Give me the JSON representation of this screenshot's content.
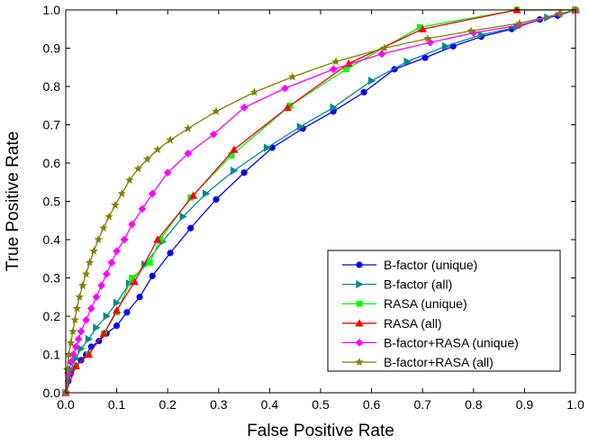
{
  "chart_data": {
    "type": "line",
    "xlabel": "False Positive Rate",
    "ylabel": "True Positive Rate",
    "xlim": [
      0,
      1
    ],
    "ylim": [
      0,
      1
    ],
    "xticks": [
      "0.0",
      "0.1",
      "0.2",
      "0.3",
      "0.4",
      "0.5",
      "0.6",
      "0.7",
      "0.8",
      "0.9",
      "1.0"
    ],
    "yticks": [
      "0.0",
      "0.1",
      "0.2",
      "0.3",
      "0.4",
      "0.5",
      "0.6",
      "0.7",
      "0.8",
      "0.9",
      "1.0"
    ],
    "grid": false,
    "legend_position": "bottom-right",
    "series": [
      {
        "name": "B-factor (unique)",
        "color": "#0000ff",
        "marker": "circle",
        "x": [
          0,
          0.005,
          0.01,
          0.02,
          0.03,
          0.04,
          0.05,
          0.065,
          0.08,
          0.1,
          0.12,
          0.145,
          0.17,
          0.205,
          0.245,
          0.295,
          0.35,
          0.405,
          0.465,
          0.525,
          0.585,
          0.645,
          0.705,
          0.76,
          0.815,
          0.875,
          0.93,
          0.965,
          1.0
        ],
        "y": [
          0,
          0.03,
          0.05,
          0.07,
          0.085,
          0.1,
          0.12,
          0.135,
          0.155,
          0.175,
          0.21,
          0.25,
          0.305,
          0.365,
          0.43,
          0.505,
          0.575,
          0.64,
          0.69,
          0.735,
          0.785,
          0.845,
          0.875,
          0.905,
          0.93,
          0.95,
          0.975,
          0.985,
          1.0
        ]
      },
      {
        "name": "B-factor (all)",
        "color": "#008b8b",
        "marker": "triangle-right",
        "x": [
          0,
          0.01,
          0.02,
          0.03,
          0.045,
          0.06,
          0.08,
          0.1,
          0.125,
          0.155,
          0.19,
          0.23,
          0.275,
          0.33,
          0.395,
          0.46,
          0.525,
          0.6,
          0.67,
          0.745,
          0.815,
          0.885,
          0.945,
          1.0
        ],
        "y": [
          0,
          0.06,
          0.09,
          0.115,
          0.14,
          0.17,
          0.2,
          0.235,
          0.285,
          0.335,
          0.395,
          0.46,
          0.52,
          0.58,
          0.64,
          0.695,
          0.745,
          0.815,
          0.865,
          0.905,
          0.935,
          0.955,
          0.98,
          1.0
        ]
      },
      {
        "name": "RASA (unique)",
        "color": "#00ff00",
        "marker": "square",
        "x": [
          0,
          0.02,
          0.045,
          0.075,
          0.1,
          0.13,
          0.165,
          0.185,
          0.245,
          0.325,
          0.44,
          0.55,
          0.695,
          0.885,
          1.0
        ],
        "y": [
          0,
          0.07,
          0.1,
          0.155,
          0.21,
          0.3,
          0.34,
          0.4,
          0.51,
          0.62,
          0.75,
          0.845,
          0.955,
          1.0,
          1.0
        ]
      },
      {
        "name": "RASA (all)",
        "color": "#ff0000",
        "marker": "triangle-up",
        "x": [
          0,
          0.02,
          0.045,
          0.075,
          0.1,
          0.135,
          0.18,
          0.25,
          0.33,
          0.435,
          0.555,
          0.7,
          0.885,
          1.0
        ],
        "y": [
          0,
          0.07,
          0.1,
          0.155,
          0.215,
          0.29,
          0.4,
          0.515,
          0.635,
          0.745,
          0.86,
          0.95,
          1.0,
          1.0
        ]
      },
      {
        "name": "B-factor+RASA (unique)",
        "color": "#ff00ff",
        "marker": "diamond",
        "x": [
          0,
          0.005,
          0.01,
          0.015,
          0.02,
          0.025,
          0.03,
          0.04,
          0.05,
          0.06,
          0.07,
          0.08,
          0.09,
          0.1,
          0.115,
          0.13,
          0.15,
          0.17,
          0.2,
          0.24,
          0.29,
          0.35,
          0.43,
          0.525,
          0.62,
          0.715,
          0.8,
          0.89,
          0.97,
          1.0
        ],
        "y": [
          0,
          0.05,
          0.08,
          0.1,
          0.12,
          0.14,
          0.16,
          0.19,
          0.22,
          0.25,
          0.28,
          0.31,
          0.34,
          0.37,
          0.4,
          0.44,
          0.48,
          0.52,
          0.575,
          0.625,
          0.675,
          0.745,
          0.795,
          0.845,
          0.885,
          0.915,
          0.94,
          0.96,
          0.99,
          1.0
        ]
      },
      {
        "name": "B-factor+RASA (all)",
        "color": "#808000",
        "marker": "star",
        "x": [
          0,
          0.003,
          0.006,
          0.01,
          0.014,
          0.018,
          0.022,
          0.027,
          0.033,
          0.04,
          0.047,
          0.055,
          0.064,
          0.074,
          0.085,
          0.097,
          0.11,
          0.125,
          0.142,
          0.16,
          0.18,
          0.205,
          0.24,
          0.295,
          0.37,
          0.445,
          0.53,
          0.625,
          0.71,
          0.795,
          0.89,
          0.97,
          1.0
        ],
        "y": [
          0,
          0.06,
          0.1,
          0.13,
          0.16,
          0.19,
          0.22,
          0.25,
          0.28,
          0.31,
          0.34,
          0.37,
          0.4,
          0.43,
          0.46,
          0.49,
          0.52,
          0.555,
          0.585,
          0.61,
          0.635,
          0.66,
          0.69,
          0.735,
          0.785,
          0.825,
          0.865,
          0.9,
          0.925,
          0.945,
          0.965,
          0.99,
          1.0
        ]
      }
    ]
  }
}
